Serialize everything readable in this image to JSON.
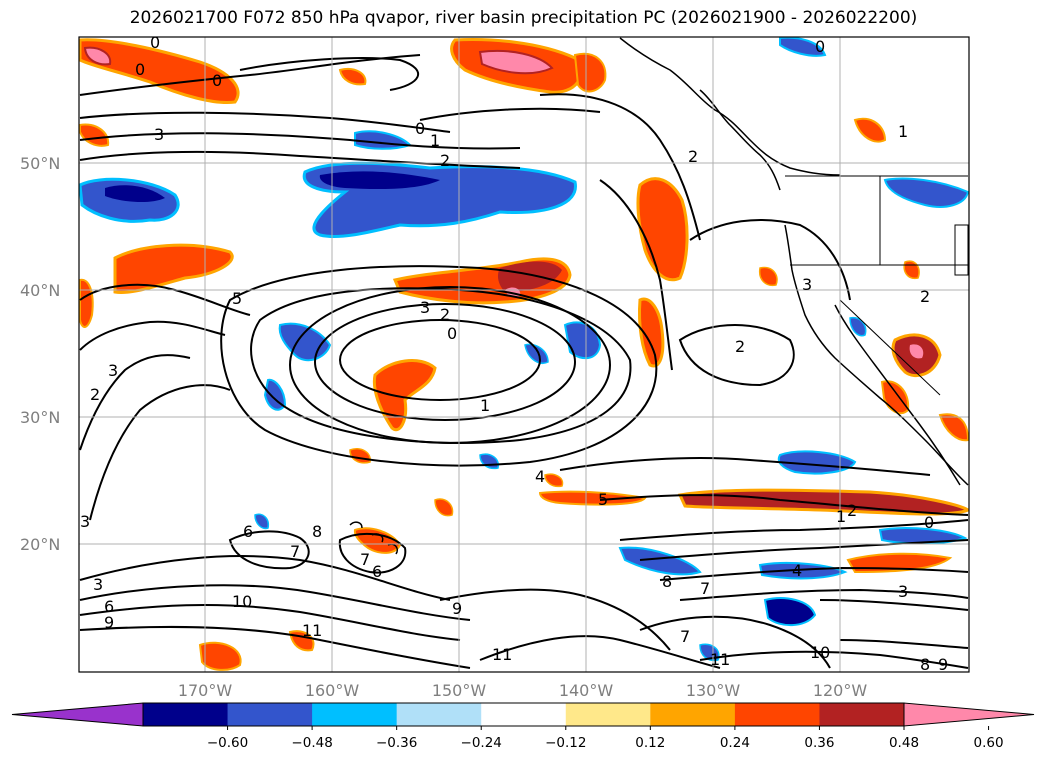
{
  "title": "2026021700 F072 850 hPa qvapor, river basin precipitation PC (2026021900 - 2026022200)",
  "lat_labels": [
    "50°N",
    "40°N",
    "30°N",
    "20°N"
  ],
  "lon_labels": [
    "170°W",
    "160°W",
    "150°W",
    "140°W",
    "130°W",
    "120°W"
  ],
  "contour_labels": {
    "c1": "0",
    "c2": "0",
    "c3": "0",
    "c4": "3",
    "c5": "0",
    "c6": "1",
    "c7": "2",
    "c8": "0",
    "c9": "2",
    "c10": "1",
    "c11": "3",
    "c12": "2",
    "c13": "0",
    "c14": "1",
    "c15": "2",
    "c16": "5",
    "c17": "3",
    "c18": "2",
    "c19": "3",
    "c20": "2",
    "c21": "4",
    "c22": "5",
    "c23": "1",
    "c24": "2",
    "c25": "0",
    "c26": "4",
    "c27": "3",
    "c28": "6",
    "c29": "7",
    "c30": "8",
    "c31": "7",
    "c32": "6",
    "c33": "3",
    "c34": "6",
    "c35": "9",
    "c36": "10",
    "c37": "11",
    "c38": "9",
    "c39": "11",
    "c40": "8",
    "c41": "7",
    "c42": "7",
    "c43": "11",
    "c44": "10",
    "c45": "8",
    "c46": "9",
    "c47": "3"
  },
  "colorbar": {
    "ticks": [
      "−0.60",
      "−0.48",
      "−0.36",
      "−0.24",
      "−0.12",
      "0.12",
      "0.24",
      "0.36",
      "0.48",
      "0.60"
    ],
    "colors": [
      "#9932cc",
      "#00008b",
      "#3355cc",
      "#00bfff",
      "#b0e0f8",
      "#ffffff",
      "#ffe88a",
      "#ffa500",
      "#ff4500",
      "#b22222",
      "#ff88aa"
    ]
  }
}
